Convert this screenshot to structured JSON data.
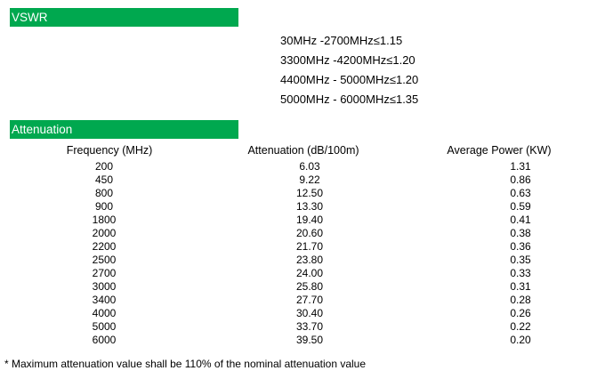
{
  "colors": {
    "accent_green": "#00A84F",
    "text": "#000000",
    "bar_text": "#ffffff",
    "background": "#ffffff"
  },
  "vswr_section": {
    "title": "VSWR",
    "lines": [
      "30MHz -2700MHz≤1.15",
      "3300MHz -4200MHz≤1.20",
      "4400MHz - 5000MHz≤1.20",
      "5000MHz - 6000MHz≤1.35"
    ]
  },
  "attenuation_section": {
    "title": "Attenuation",
    "table": {
      "columns": [
        "Frequency (MHz)",
        "Attenuation (dB/100m)",
        "Average Power (KW)"
      ],
      "rows": [
        [
          "200",
          "6.03",
          "1.31"
        ],
        [
          "450",
          "9.22",
          "0.86"
        ],
        [
          "800",
          "12.50",
          "0.63"
        ],
        [
          "900",
          "13.30",
          "0.59"
        ],
        [
          "1800",
          "19.40",
          "0.41"
        ],
        [
          "2000",
          "20.60",
          "0.38"
        ],
        [
          "2200",
          "21.70",
          "0.36"
        ],
        [
          "2500",
          "23.80",
          "0.35"
        ],
        [
          "2700",
          "24.00",
          "0.33"
        ],
        [
          "3000",
          "25.80",
          "0.31"
        ],
        [
          "3400",
          "27.70",
          "0.28"
        ],
        [
          "4000",
          "30.40",
          "0.26"
        ],
        [
          "5000",
          "33.70",
          "0.22"
        ],
        [
          "6000",
          "39.50",
          "0.20"
        ]
      ]
    }
  },
  "footnote": "* Maximum attenuation value shall be 110% of the nominal attenuation value"
}
